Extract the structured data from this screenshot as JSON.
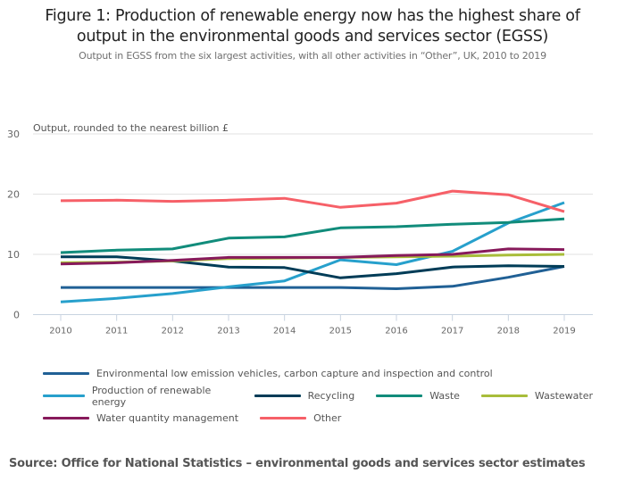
{
  "chart_data": {
    "type": "line",
    "title": "Figure 1: Production of renewable energy now has the highest share of output in the environmental goods and services sector (EGSS)",
    "subtitle": "Output in EGSS from the six largest activities, with all other activities in “Other”, UK, 2010 to 2019",
    "xlabel": "",
    "ylabel": "Output, rounded to the nearest billion £",
    "ylim": [
      0,
      30
    ],
    "yticks": [
      "0",
      "10",
      "20",
      "30"
    ],
    "x": [
      "2010",
      "2011",
      "2012",
      "2013",
      "2014",
      "2015",
      "2016",
      "2017",
      "2018",
      "2019"
    ],
    "grid": true,
    "legend_position": "bottom",
    "series": [
      {
        "name": "Environmental low emission vehicles, carbon capture and inspection and control",
        "color": "#206095",
        "values": [
          4.5,
          4.5,
          4.5,
          4.5,
          4.5,
          4.5,
          4.3,
          4.7,
          6.2,
          8.0
        ]
      },
      {
        "name": "Production of renewable energy",
        "color": "#27a0cc",
        "values": [
          2.1,
          2.7,
          3.5,
          4.6,
          5.6,
          9.1,
          8.3,
          10.5,
          15.2,
          18.6
        ]
      },
      {
        "name": "Recycling",
        "color": "#003c57",
        "values": [
          9.6,
          9.6,
          8.9,
          7.9,
          7.8,
          6.1,
          6.8,
          7.9,
          8.1,
          8.0
        ]
      },
      {
        "name": "Waste",
        "color": "#118c7b",
        "values": [
          10.3,
          10.7,
          10.9,
          12.7,
          12.9,
          14.4,
          14.6,
          15.0,
          15.3,
          15.9
        ]
      },
      {
        "name": "Wastewater",
        "color": "#a8bd3a",
        "values": [
          8.6,
          8.7,
          8.9,
          9.3,
          9.4,
          9.5,
          9.6,
          9.7,
          9.9,
          10.0
        ]
      },
      {
        "name": "Water quantity management",
        "color": "#871a5b",
        "values": [
          8.4,
          8.6,
          9.0,
          9.5,
          9.5,
          9.5,
          9.8,
          10.0,
          10.9,
          10.8
        ]
      },
      {
        "name": "Other",
        "color": "#f66068",
        "values": [
          18.9,
          19.0,
          18.8,
          19.0,
          19.3,
          17.8,
          18.5,
          20.5,
          19.9,
          17.1
        ]
      }
    ]
  },
  "legend_rows": [
    [
      0
    ],
    [
      1,
      2,
      3,
      4
    ],
    [
      5,
      6
    ]
  ],
  "source": "Source: Office for National Statistics – environmental goods and services sector estimates"
}
